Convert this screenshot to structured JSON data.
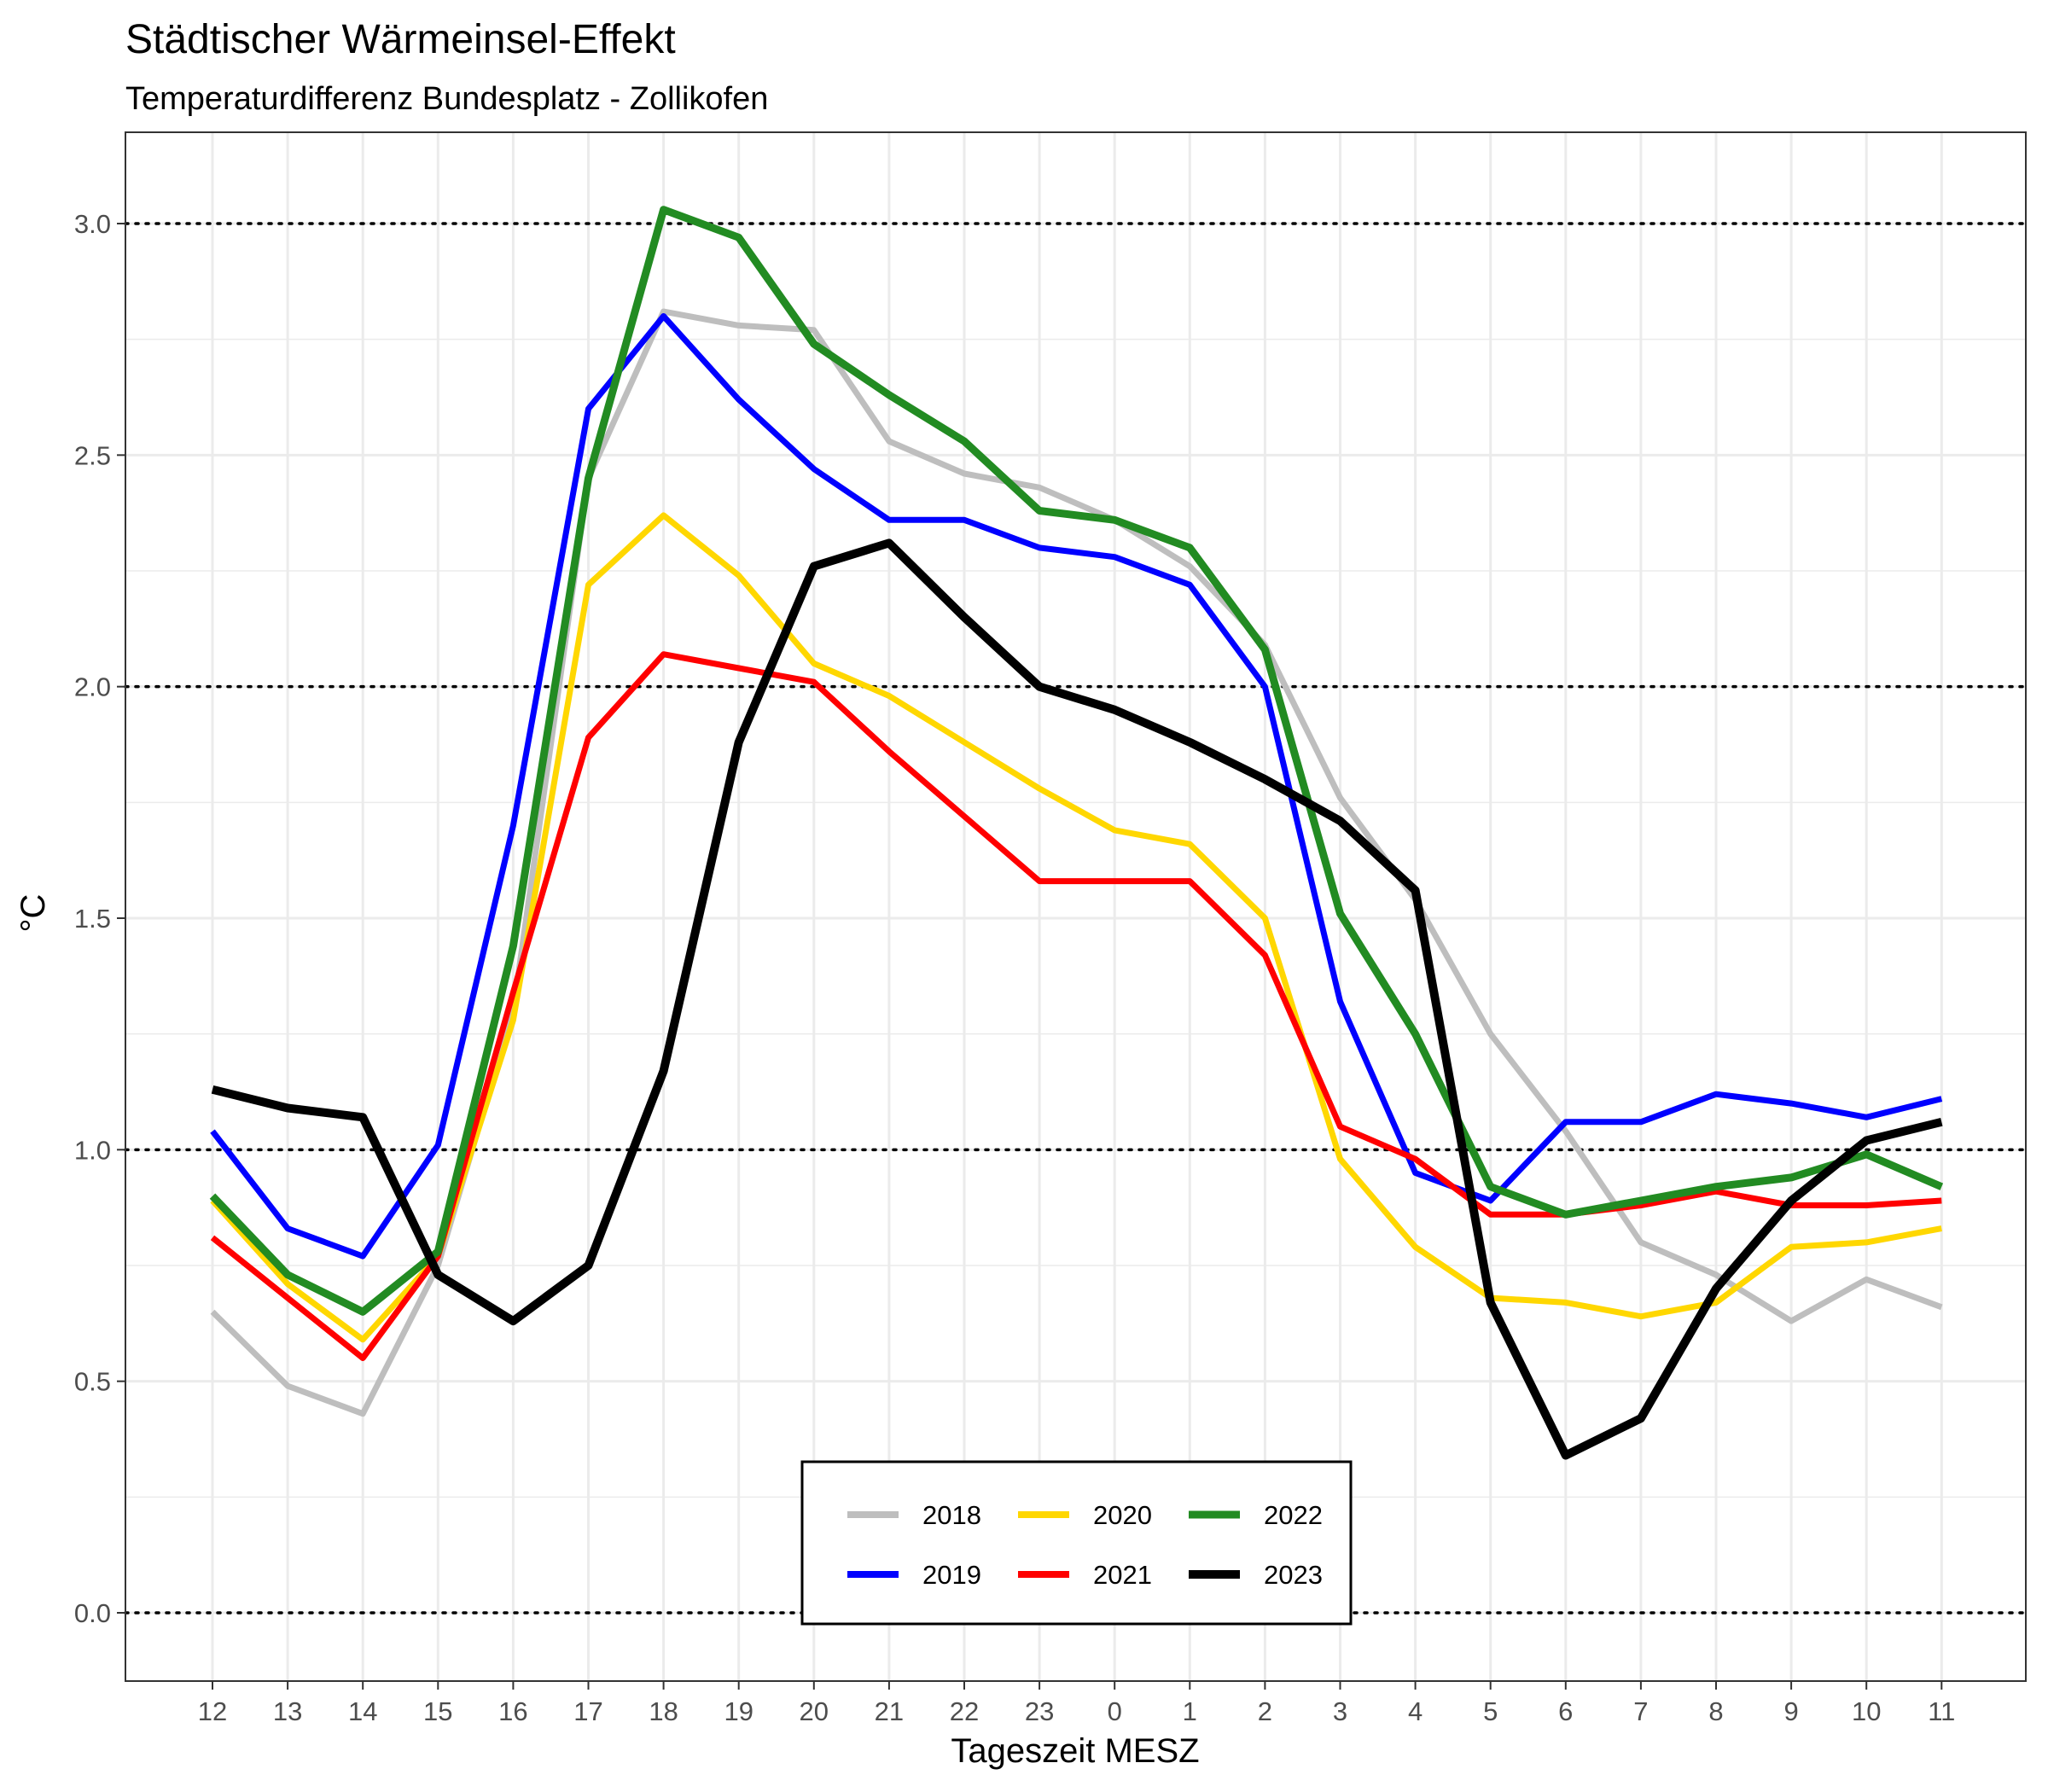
{
  "chart_data": {
    "type": "line",
    "title": "Städtischer Wärmeinsel-Effekt",
    "subtitle": "Temperaturdifferenz Bundesplatz - Zollikofen",
    "xlabel": "Tageszeit MESZ",
    "ylabel": "°C",
    "ylim": [
      -0.15,
      3.2
    ],
    "yticks": [
      0.0,
      0.5,
      1.0,
      1.5,
      2.0,
      2.5,
      3.0
    ],
    "ytick_labels": [
      "0.0",
      "0.5",
      "1.0",
      "1.5",
      "2.0",
      "2.5",
      "3.0"
    ],
    "dotted_reference_lines": [
      0.0,
      1.0,
      2.0,
      3.0
    ],
    "grid": true,
    "legend_position": "bottom-center",
    "categories": [
      "12",
      "13",
      "14",
      "15",
      "16",
      "17",
      "18",
      "19",
      "20",
      "21",
      "22",
      "23",
      "0",
      "1",
      "2",
      "3",
      "4",
      "5",
      "6",
      "7",
      "8",
      "9",
      "10",
      "11"
    ],
    "series": [
      {
        "name": "2018",
        "color": "#bebebe",
        "values": [
          0.65,
          0.49,
          0.43,
          0.75,
          1.3,
          2.45,
          2.81,
          2.78,
          2.77,
          2.53,
          2.46,
          2.43,
          2.36,
          2.26,
          2.09,
          1.76,
          1.54,
          1.25,
          1.04,
          0.8,
          0.73,
          0.63,
          0.72,
          0.66
        ]
      },
      {
        "name": "2019",
        "color": "#0000ff",
        "values": [
          1.04,
          0.83,
          0.77,
          1.01,
          1.7,
          2.6,
          2.8,
          2.62,
          2.47,
          2.36,
          2.36,
          2.3,
          2.28,
          2.22,
          2.0,
          1.32,
          0.95,
          0.89,
          1.06,
          1.06,
          1.12,
          1.1,
          1.07,
          1.11
        ]
      },
      {
        "name": "2020",
        "color": "#ffd700",
        "values": [
          0.89,
          0.71,
          0.59,
          0.77,
          1.28,
          2.22,
          2.37,
          2.24,
          2.05,
          1.98,
          1.88,
          1.78,
          1.69,
          1.66,
          1.5,
          0.98,
          0.79,
          0.68,
          0.67,
          0.64,
          0.67,
          0.79,
          0.8,
          0.83
        ]
      },
      {
        "name": "2021",
        "color": "#ff0000",
        "values": [
          0.81,
          0.68,
          0.55,
          0.77,
          1.34,
          1.89,
          2.07,
          2.04,
          2.01,
          1.86,
          1.72,
          1.58,
          1.58,
          1.58,
          1.42,
          1.05,
          0.98,
          0.86,
          0.86,
          0.88,
          0.91,
          0.88,
          0.88,
          0.89
        ]
      },
      {
        "name": "2022",
        "color": "#228b22",
        "values": [
          0.9,
          0.73,
          0.65,
          0.78,
          1.44,
          2.45,
          3.03,
          2.97,
          2.74,
          2.63,
          2.53,
          2.38,
          2.36,
          2.3,
          2.08,
          1.51,
          1.25,
          0.92,
          0.86,
          0.89,
          0.92,
          0.94,
          0.99,
          0.92
        ]
      },
      {
        "name": "2023",
        "color": "#000000",
        "values": [
          1.13,
          1.09,
          1.07,
          0.73,
          0.63,
          0.75,
          1.17,
          1.88,
          2.26,
          2.31,
          2.15,
          2.0,
          1.95,
          1.88,
          1.8,
          1.71,
          1.56,
          0.67,
          0.34,
          0.42,
          0.7,
          0.89,
          1.02,
          1.06
        ]
      }
    ]
  }
}
